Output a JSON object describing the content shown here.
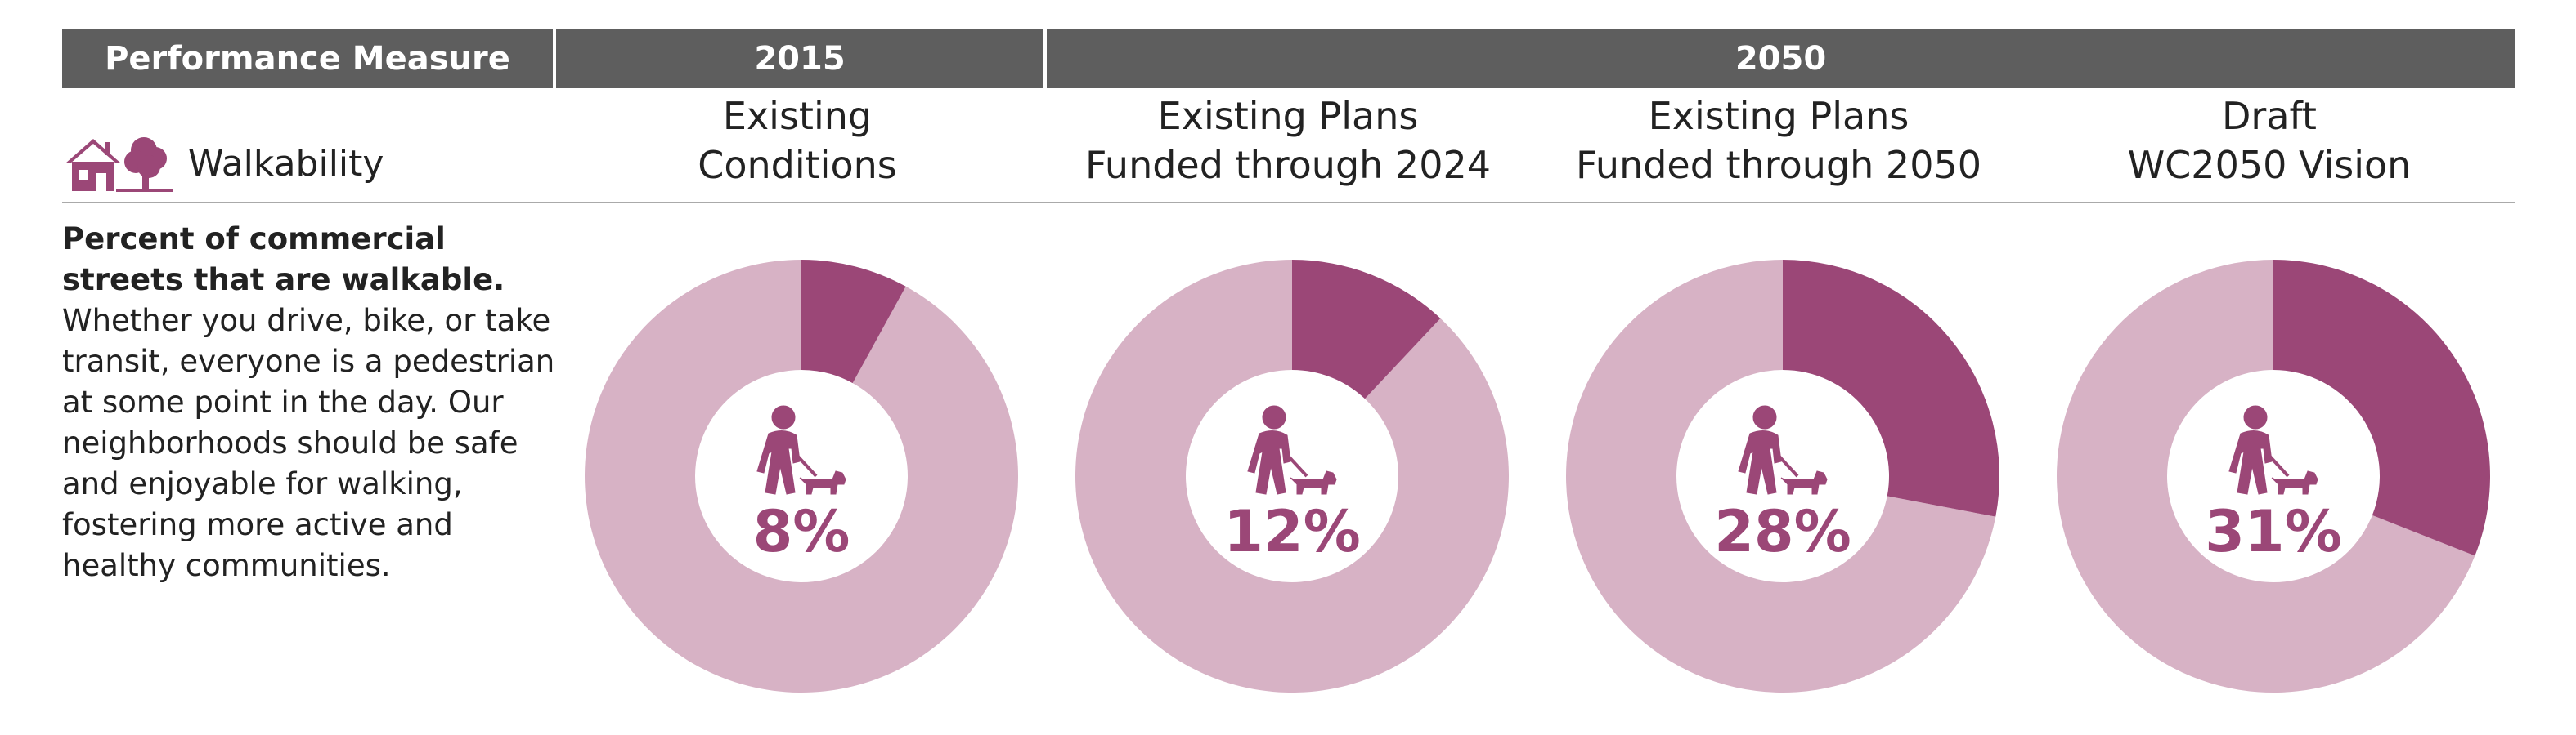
{
  "header": {
    "measure": "Performance Measure",
    "year_2015": "2015",
    "year_2050": "2050"
  },
  "measure": {
    "label": "Walkability",
    "description_bold": "Percent of commercial streets that are walkable.",
    "description_rest": " Whether you drive, bike, or take transit, everyone is a pedestrian at some point in the day. Our neighborhoods should be safe and enjoyable for walking, fostering more active and healthy communities."
  },
  "columns": [
    {
      "line1": "Existing",
      "line2": "Conditions"
    },
    {
      "line1": "Existing Plans",
      "line2": "Funded through 2024"
    },
    {
      "line1": "Existing Plans",
      "line2": "Funded through 2050"
    },
    {
      "line1": "Draft",
      "line2": "WC2050 Vision"
    }
  ],
  "colors": {
    "header_bg": "#5e5e5e",
    "primary": "#9b4777",
    "light": "#d7b2c5"
  },
  "chart_data": {
    "type": "pie",
    "variant": "donut",
    "title": "Percent of commercial streets that are walkable",
    "categories": [
      "Existing Conditions",
      "Existing Plans Funded through 2024",
      "Existing Plans Funded through 2050",
      "Draft WC2050 Vision"
    ],
    "values": [
      8,
      12,
      28,
      31
    ],
    "labels": [
      "8%",
      "12%",
      "28%",
      "31%"
    ],
    "unit": "%",
    "max": 100
  }
}
